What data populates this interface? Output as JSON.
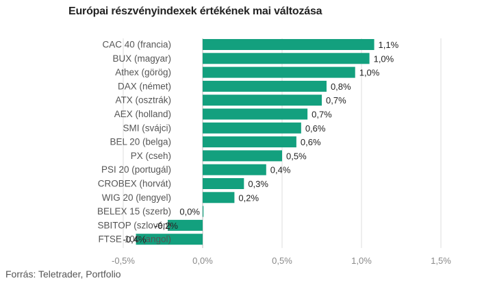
{
  "title": "Európai részvényindexek értékének mai változása",
  "source": "Forrás: Teletrader, Portfolio",
  "chart_data": {
    "type": "bar",
    "orientation": "horizontal",
    "title": "Európai részvényindexek értékének mai változása",
    "xlabel": "",
    "ylabel": "",
    "xlim": [
      -0.5,
      1.5
    ],
    "grid": true,
    "bar_color": "#13a07e",
    "categories": [
      "CAC 40 (francia)",
      "BUX (magyar)",
      "Athex (görög)",
      "DAX (német)",
      "ATX (osztrák)",
      "AEX (holland)",
      "SMI (svájci)",
      "BEL 20 (belga)",
      "PX (cseh)",
      "PSI 20 (portugál)",
      "CROBEX (horvát)",
      "WIG 20 (lengyel)",
      "BELEX 15 (szerb)",
      "SBITOP (szlovén)",
      "FTSE 100 (angol)"
    ],
    "values": [
      1.08,
      1.05,
      0.96,
      0.78,
      0.75,
      0.66,
      0.62,
      0.59,
      0.5,
      0.4,
      0.26,
      0.2,
      0.0,
      -0.22,
      -0.42
    ],
    "value_labels": [
      "1,1%",
      "1,0%",
      "1,0%",
      "0,8%",
      "0,7%",
      "0,7%",
      "0,6%",
      "0,6%",
      "0,5%",
      "0,4%",
      "0,3%",
      "0,2%",
      "0,0%",
      "-0,2%",
      "-0,4%"
    ],
    "ticks": [
      -0.5,
      0,
      0.5,
      1.0,
      1.5
    ],
    "tick_labels": [
      "-0,5%",
      "0,0%",
      "0,5%",
      "1,0%",
      "1,5%"
    ]
  }
}
